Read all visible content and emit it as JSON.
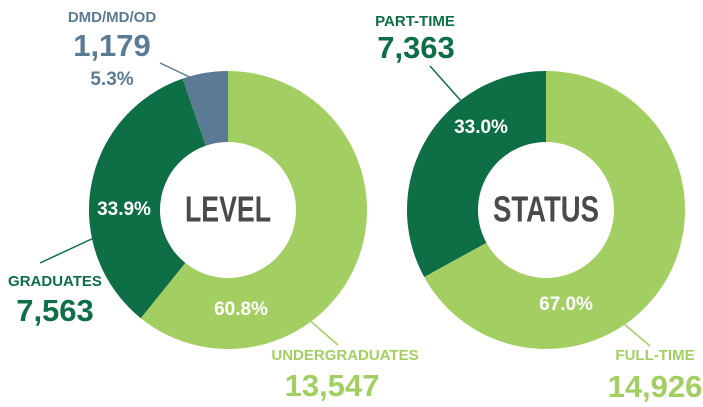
{
  "chart_data": [
    {
      "type": "donut",
      "title": "LEVEL",
      "categories": [
        "UNDERGRADUATES",
        "GRADUATES",
        "DMD/MD/OD"
      ],
      "values": [
        60.8,
        33.9,
        5.3
      ],
      "value_labels": [
        "60.8%",
        "33.9%",
        "5.3%"
      ],
      "counts": [
        "13,547",
        "7,563",
        "1,179"
      ],
      "colors": [
        "#a3cf62",
        "#0e6e46",
        "#5b7b94"
      ]
    },
    {
      "type": "donut",
      "title": "STATUS",
      "categories": [
        "FULL-TIME",
        "PART-TIME"
      ],
      "values": [
        67.0,
        33.0
      ],
      "value_labels": [
        "67.0%",
        "33.0%"
      ],
      "counts": [
        "14,926",
        "7,363"
      ],
      "colors": [
        "#a3cf62",
        "#0e6e46"
      ]
    }
  ]
}
